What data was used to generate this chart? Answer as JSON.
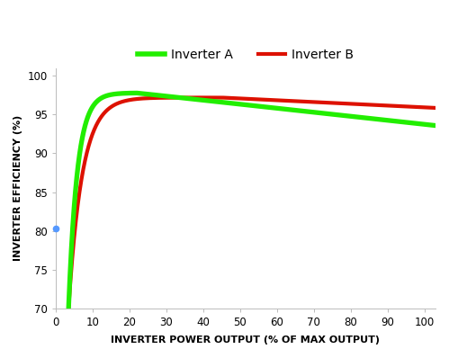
{
  "xlabel": "INVERTER POWER OUTPUT (% OF MAX OUTPUT)",
  "ylabel": "INVERTER EFFICIENCY (%)",
  "xlim": [
    0,
    103
  ],
  "ylim": [
    70,
    101
  ],
  "yticks": [
    70,
    75,
    80,
    85,
    90,
    95,
    100
  ],
  "xticks": [
    0,
    10,
    20,
    30,
    40,
    50,
    60,
    70,
    80,
    90,
    100
  ],
  "inverter_A_color": "#22ee00",
  "inverter_B_color": "#dd1100",
  "inverter_A_linewidth": 3.8,
  "inverter_B_linewidth": 3.0,
  "legend_A": "Inverter A",
  "legend_B": "Inverter B",
  "background_color": "#ffffff",
  "dot_color": "#5599ff",
  "dot_x": 0,
  "dot_y": 80.3
}
